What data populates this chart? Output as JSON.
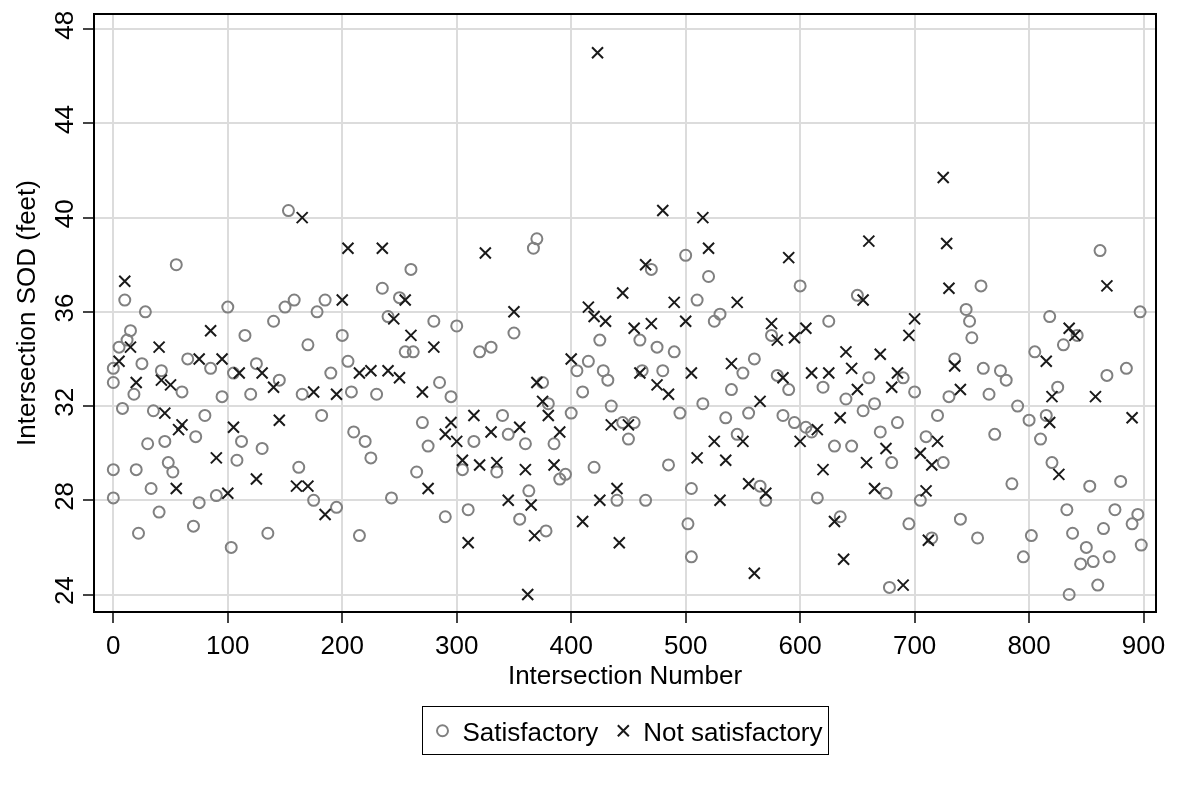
{
  "chart_data": {
    "type": "scatter",
    "xlabel": "Intersection Number",
    "ylabel": "Intersection SOD (feet)",
    "xlim": [
      -16,
      910
    ],
    "ylim": [
      23.3,
      48.6
    ],
    "xticks": [
      0,
      100,
      200,
      300,
      400,
      500,
      600,
      700,
      800,
      900
    ],
    "yticks": [
      24,
      28,
      32,
      36,
      40,
      44,
      48
    ],
    "grid": true,
    "legend": "bottom",
    "series": [
      {
        "name": "Satisfactory",
        "color": "#808080",
        "marker": "circle",
        "x": [
          0,
          0,
          0,
          0,
          5,
          8,
          10,
          12,
          15,
          18,
          20,
          22,
          25,
          28,
          30,
          33,
          35,
          40,
          42,
          45,
          48,
          52,
          55,
          60,
          65,
          70,
          72,
          75,
          80,
          85,
          90,
          95,
          100,
          103,
          105,
          108,
          112,
          115,
          120,
          125,
          130,
          135,
          140,
          145,
          150,
          153,
          158,
          162,
          165,
          170,
          175,
          178,
          182,
          185,
          190,
          195,
          200,
          205,
          208,
          210,
          215,
          220,
          225,
          230,
          235,
          240,
          243,
          250,
          255,
          260,
          262,
          265,
          270,
          275,
          280,
          285,
          290,
          295,
          300,
          305,
          310,
          315,
          320,
          330,
          335,
          340,
          345,
          350,
          355,
          360,
          363,
          367,
          370,
          375,
          378,
          380,
          385,
          390,
          395,
          400,
          405,
          410,
          415,
          420,
          425,
          428,
          432,
          435,
          440,
          445,
          450,
          455,
          460,
          462,
          465,
          470,
          475,
          480,
          485,
          490,
          495,
          500,
          502,
          505,
          505,
          510,
          515,
          520,
          525,
          530,
          535,
          540,
          545,
          550,
          555,
          560,
          565,
          570,
          575,
          580,
          585,
          590,
          595,
          600,
          605,
          610,
          615,
          620,
          625,
          630,
          635,
          640,
          645,
          650,
          655,
          660,
          665,
          670,
          675,
          678,
          680,
          685,
          690,
          695,
          700,
          705,
          710,
          715,
          720,
          725,
          730,
          735,
          740,
          745,
          748,
          750,
          755,
          758,
          760,
          765,
          770,
          775,
          780,
          785,
          790,
          795,
          800,
          802,
          805,
          810,
          815,
          818,
          820,
          825,
          830,
          833,
          835,
          838,
          842,
          845,
          850,
          853,
          856,
          860,
          862,
          865,
          868,
          870,
          875,
          880,
          885,
          890,
          895,
          897,
          898
        ],
        "values": [
          33.6,
          33,
          29.3,
          28.1,
          34.5,
          31.9,
          36.5,
          34.8,
          35.2,
          32.5,
          29.3,
          26.6,
          33.8,
          36,
          30.4,
          28.5,
          31.8,
          27.5,
          33.5,
          30.5,
          29.6,
          29.2,
          38,
          32.6,
          34,
          26.9,
          30.7,
          27.9,
          31.6,
          33.6,
          28.2,
          32.4,
          36.2,
          26,
          33.4,
          29.7,
          30.5,
          35,
          32.5,
          33.8,
          30.2,
          26.6,
          35.6,
          33.1,
          36.2,
          40.3,
          36.5,
          29.4,
          32.5,
          34.6,
          28,
          36,
          31.6,
          36.5,
          33.4,
          27.7,
          35,
          33.9,
          32.6,
          30.9,
          26.5,
          30.5,
          29.8,
          32.5,
          37,
          35.8,
          28.1,
          36.6,
          34.3,
          37.8,
          34.3,
          29.2,
          31.3,
          30.3,
          35.6,
          33,
          27.3,
          32.4,
          35.4,
          29.3,
          27.6,
          30.5,
          34.3,
          34.5,
          29.2,
          31.6,
          30.8,
          35.1,
          27.2,
          30.4,
          28.4,
          38.7,
          39.1,
          33,
          26.7,
          32.1,
          30.4,
          28.9,
          29.1,
          31.7,
          33.5,
          32.6,
          33.9,
          29.4,
          34.8,
          33.5,
          33.1,
          32,
          28,
          31.3,
          30.6,
          31.3,
          34.8,
          33.5,
          28,
          37.8,
          34.5,
          33.5,
          29.5,
          34.3,
          31.7,
          38.4,
          27,
          28.5,
          25.6,
          36.5,
          32.1,
          37.5,
          35.6,
          35.9,
          31.5,
          32.7,
          30.8,
          33.4,
          31.7,
          34,
          28.6,
          28,
          35,
          33.3,
          31.6,
          32.7,
          31.3,
          37.1,
          31.1,
          30.9,
          28.1,
          32.8,
          35.6,
          30.3,
          27.3,
          32.3,
          30.3,
          36.7,
          31.8,
          33.2,
          32.1,
          30.9,
          28.3,
          24.3,
          29.6,
          31.3,
          33.2,
          27,
          32.6,
          28,
          30.7,
          26.4,
          31.6,
          29.6,
          32.4,
          34,
          27.2,
          36.1,
          35.6,
          34.9,
          26.4,
          37.1,
          33.6,
          32.5,
          30.8,
          33.5,
          33.1,
          28.7,
          32,
          25.6,
          31.4,
          26.5,
          34.3,
          30.6,
          31.6,
          35.8,
          29.6,
          32.8,
          34.6,
          27.6,
          24,
          26.6,
          35,
          25.3,
          26,
          28.6,
          25.4,
          24.4,
          38.6,
          26.8,
          33.3,
          25.6,
          27.6,
          28.8,
          33.6,
          27,
          27.4,
          36,
          26.1
        ]
      },
      {
        "name": "Not satisfactory",
        "color": "#1a1a1a",
        "marker": "cross",
        "x": [
          5,
          10,
          15,
          20,
          40,
          42,
          45,
          50,
          55,
          57,
          60,
          75,
          85,
          90,
          95,
          100,
          105,
          110,
          125,
          130,
          140,
          145,
          160,
          165,
          170,
          175,
          185,
          195,
          200,
          205,
          215,
          225,
          235,
          240,
          245,
          250,
          255,
          260,
          270,
          275,
          280,
          290,
          295,
          300,
          305,
          310,
          315,
          320,
          325,
          330,
          335,
          345,
          350,
          355,
          360,
          362,
          365,
          368,
          370,
          375,
          380,
          385,
          390,
          400,
          410,
          415,
          420,
          423,
          425,
          430,
          435,
          440,
          442,
          445,
          450,
          455,
          460,
          465,
          470,
          475,
          480,
          485,
          490,
          500,
          505,
          510,
          515,
          520,
          525,
          530,
          535,
          540,
          545,
          550,
          555,
          560,
          565,
          570,
          575,
          580,
          585,
          590,
          595,
          600,
          605,
          610,
          615,
          620,
          625,
          630,
          635,
          638,
          640,
          645,
          650,
          655,
          658,
          660,
          665,
          670,
          675,
          680,
          685,
          690,
          695,
          700,
          705,
          710,
          712,
          715,
          720,
          725,
          728,
          730,
          735,
          740,
          815,
          818,
          820,
          826,
          835,
          840,
          858,
          868,
          890
        ],
        "values": [
          33.9,
          37.3,
          34.5,
          33,
          34.5,
          33.1,
          31.7,
          32.9,
          28.5,
          31,
          31.2,
          34,
          35.2,
          29.8,
          34,
          28.3,
          31.1,
          33.4,
          28.9,
          33.4,
          32.8,
          31.4,
          28.6,
          40,
          28.6,
          32.6,
          27.4,
          32.5,
          36.5,
          38.7,
          33.4,
          33.5,
          38.7,
          33.5,
          35.7,
          33.2,
          36.5,
          35,
          32.6,
          28.5,
          34.5,
          30.8,
          31.3,
          30.5,
          29.7,
          26.2,
          31.6,
          29.5,
          38.5,
          30.9,
          29.6,
          28,
          36,
          31.1,
          29.3,
          24,
          27.8,
          26.5,
          33,
          32.2,
          31.6,
          29.5,
          30.9,
          34,
          27.1,
          36.2,
          35.8,
          47,
          28,
          35.6,
          31.2,
          28.5,
          26.2,
          36.8,
          31.2,
          35.3,
          33.4,
          38,
          35.5,
          32.9,
          40.3,
          32.5,
          36.4,
          35.6,
          33.4,
          29.8,
          40,
          38.7,
          30.5,
          28,
          29.7,
          33.8,
          36.4,
          30.5,
          28.7,
          24.9,
          32.2,
          28.3,
          35.5,
          34.8,
          33.2,
          38.3,
          34.9,
          30.5,
          35.3,
          33.4,
          31,
          29.3,
          33.4,
          27.1,
          31.5,
          25.5,
          34.3,
          33.6,
          32.7,
          36.5,
          29.6,
          39,
          28.5,
          34.2,
          30.2,
          32.8,
          33.4,
          24.4,
          35,
          35.7,
          30,
          28.4,
          26.3,
          29.5,
          30.5,
          41.7,
          38.9,
          37,
          33.7,
          32.7,
          33.9,
          31.3,
          32.4,
          29.1,
          35.3,
          35,
          32.4,
          37.1,
          31.5
        ]
      }
    ]
  }
}
